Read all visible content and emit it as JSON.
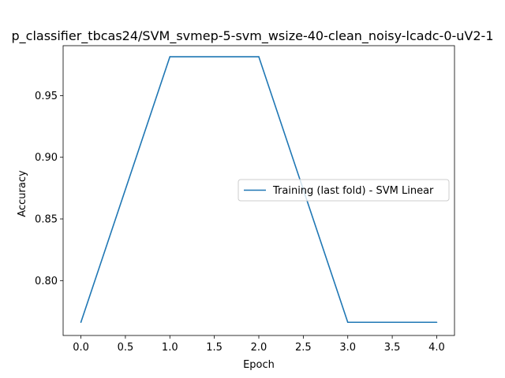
{
  "chart_data": {
    "type": "line",
    "title": "p_classifier_tbcas24/SVM_svmep-5-svm_wsize-40-clean_noisy-lcadc-0-uV2-1",
    "xlabel": "Epoch",
    "ylabel": "Accuracy",
    "xlim": [
      -0.2,
      4.2
    ],
    "ylim": [
      0.7555,
      0.9905
    ],
    "x_ticks": [
      0.0,
      0.5,
      1.0,
      1.5,
      2.0,
      2.5,
      3.0,
      3.5,
      4.0
    ],
    "x_tick_labels": [
      "0.0",
      "0.5",
      "1.0",
      "1.5",
      "2.0",
      "2.5",
      "3.0",
      "3.5",
      "4.0"
    ],
    "y_ticks": [
      0.8,
      0.85,
      0.9,
      0.95
    ],
    "y_tick_labels": [
      "0.80",
      "0.85",
      "0.90",
      "0.95"
    ],
    "grid": false,
    "legend_position": "center-right",
    "series": [
      {
        "name": "Training (last fold) - SVM Linear",
        "color": "#1f77b4",
        "x": [
          0,
          1,
          2,
          3,
          4
        ],
        "y": [
          0.7662,
          0.9815,
          0.9815,
          0.7662,
          0.7662
        ]
      }
    ]
  }
}
